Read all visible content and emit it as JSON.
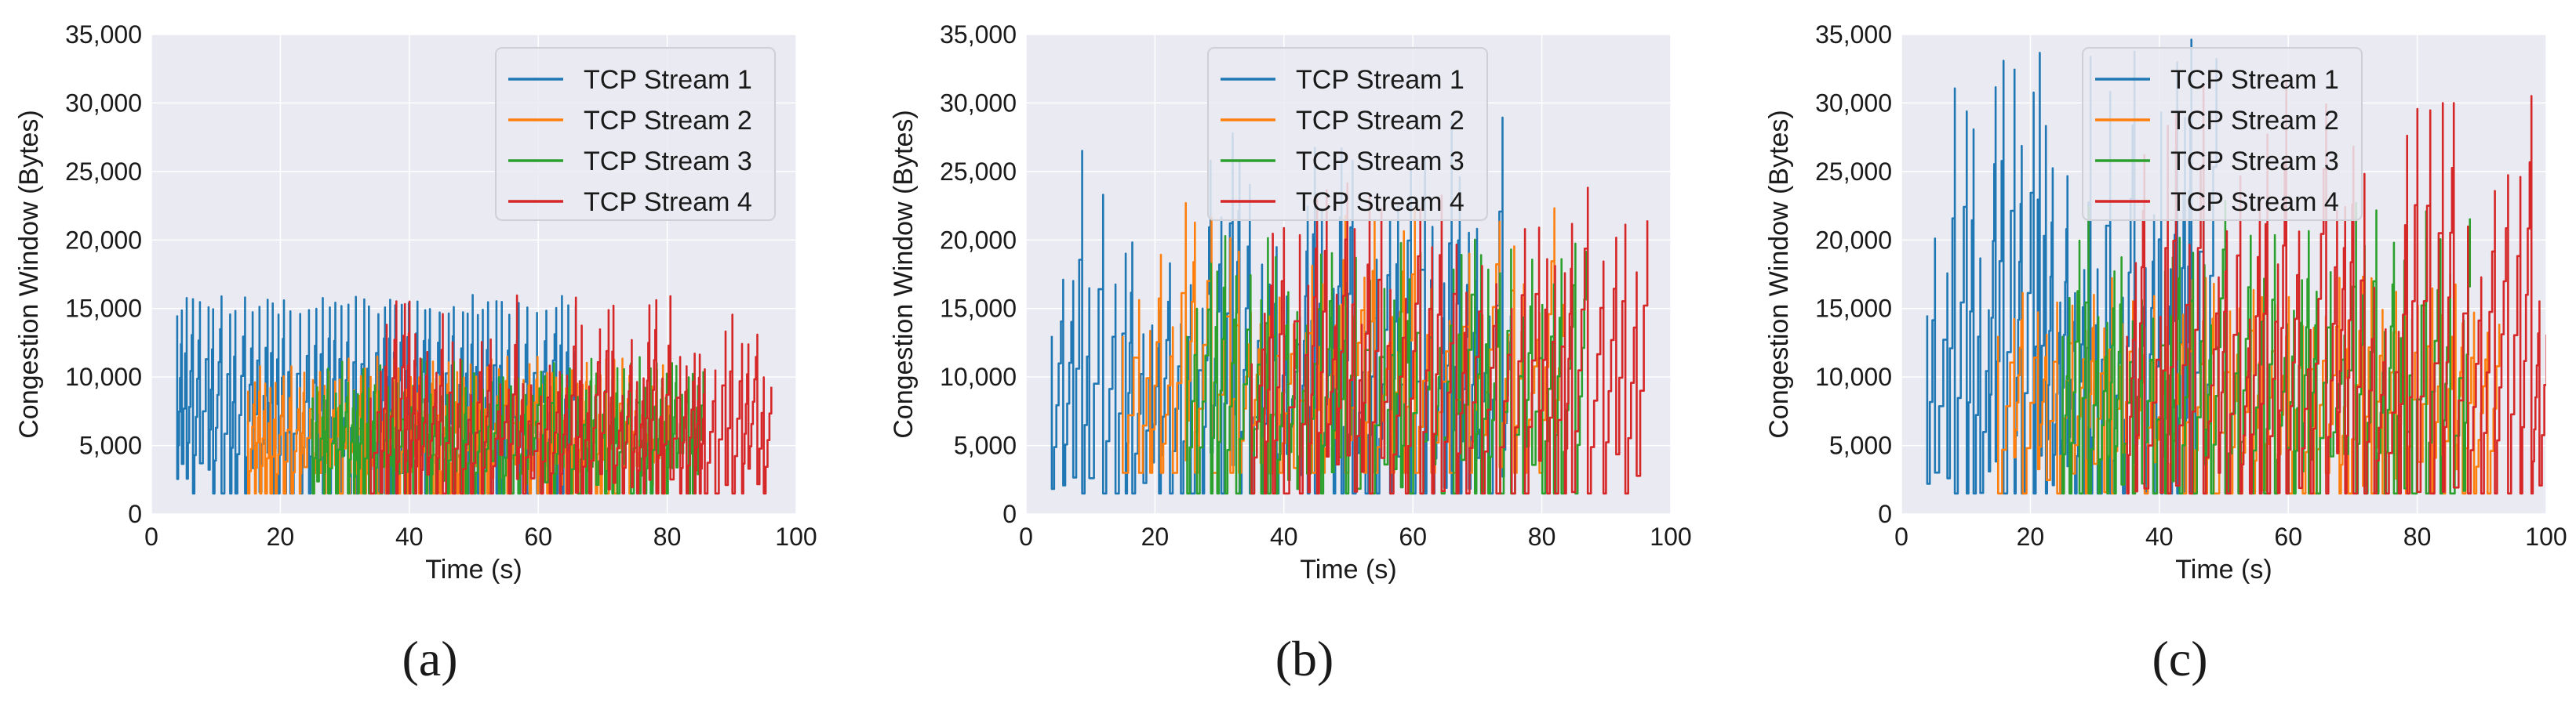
{
  "colors": {
    "plot_background": "#eaeaf2",
    "grid": "#ffffff",
    "stream_colors": [
      "#1f77b4",
      "#ff7f0e",
      "#2ca02c",
      "#d62728"
    ]
  },
  "chart_data": [
    {
      "type": "line",
      "panel_label": "(a)",
      "xlabel": "Time (s)",
      "ylabel": "Congestion Window (Bytes)",
      "xlim": [
        0,
        100
      ],
      "ylim": [
        0,
        35000
      ],
      "xticks": [
        "0",
        "20",
        "40",
        "60",
        "80",
        "100"
      ],
      "yticks": [
        "0",
        "5,000",
        "10,000",
        "15,000",
        "20,000",
        "25,000",
        "30,000",
        "35,000"
      ],
      "grid": true,
      "legend_position": "top-right",
      "series": [
        {
          "name": "TCP Stream 1",
          "active": [
            4,
            65
          ],
          "peak_min": 14500,
          "peak_max": 16000,
          "trough": 1500,
          "period": 1.1,
          "seed": 11
        },
        {
          "name": "TCP Stream 2",
          "active": [
            15,
            80
          ],
          "peak_min": 9000,
          "peak_max": 11500,
          "trough": 1500,
          "period": 1.0,
          "seed": 23
        },
        {
          "name": "TCP Stream 3",
          "active": [
            25,
            85
          ],
          "peak_min": 8500,
          "peak_max": 11500,
          "trough": 1500,
          "period": 1.0,
          "seed": 37
        },
        {
          "name": "TCP Stream 4",
          "active": [
            34,
            95
          ],
          "peak_min": 8500,
          "peak_max": 16000,
          "trough": 1500,
          "period": 1.2,
          "seed": 41
        }
      ]
    },
    {
      "type": "line",
      "panel_label": "(b)",
      "xlabel": "Time (s)",
      "ylabel": "Congestion Window (Bytes)",
      "xlim": [
        0,
        100
      ],
      "ylim": [
        0,
        35000
      ],
      "xticks": [
        "0",
        "20",
        "40",
        "60",
        "80",
        "100"
      ],
      "yticks": [
        "0",
        "5,000",
        "10,000",
        "15,000",
        "20,000",
        "25,000",
        "30,000",
        "35,000"
      ],
      "grid": true,
      "legend_position": "top-center",
      "series": [
        {
          "name": "TCP Stream 1",
          "active": [
            4,
            75
          ],
          "peak_min": 13000,
          "peak_max": 29000,
          "trough": 1500,
          "period": 1.6,
          "seed": 53
        },
        {
          "name": "TCP Stream 2",
          "active": [
            15,
            83
          ],
          "peak_min": 13000,
          "peak_max": 23000,
          "trough": 3000,
          "period": 2.2,
          "seed": 67
        },
        {
          "name": "TCP Stream 3",
          "active": [
            25,
            86
          ],
          "peak_min": 13000,
          "peak_max": 20500,
          "trough": 1500,
          "period": 1.6,
          "seed": 71
        },
        {
          "name": "TCP Stream 4",
          "active": [
            35,
            95
          ],
          "peak_min": 11000,
          "peak_max": 24500,
          "trough": 1500,
          "period": 1.8,
          "seed": 83
        }
      ]
    },
    {
      "type": "line",
      "panel_label": "(c)",
      "xlabel": "Time (s)",
      "ylabel": "Congestion Window (Bytes)",
      "xlim": [
        0,
        100
      ],
      "ylim": [
        0,
        35000
      ],
      "xticks": [
        "0",
        "20",
        "40",
        "60",
        "80",
        "100"
      ],
      "yticks": [
        "0",
        "5,000",
        "10,000",
        "15,000",
        "20,000",
        "25,000",
        "30,000",
        "35,000"
      ],
      "grid": true,
      "legend_position": "top-center",
      "series": [
        {
          "name": "TCP Stream 1",
          "active": [
            4,
            48
          ],
          "peak_min": 14500,
          "peak_max": 35000,
          "trough": 1500,
          "period": 1.5,
          "seed": 97
        },
        {
          "name": "TCP Stream 2",
          "active": [
            15,
            92
          ],
          "peak_min": 13000,
          "peak_max": 17500,
          "trough": 1500,
          "period": 1.8,
          "seed": 101
        },
        {
          "name": "TCP Stream 3",
          "active": [
            25,
            88
          ],
          "peak_min": 13000,
          "peak_max": 23000,
          "trough": 1500,
          "period": 1.6,
          "seed": 107
        },
        {
          "name": "TCP Stream 4",
          "active": [
            35,
            100
          ],
          "peak_min": 13000,
          "peak_max": 32000,
          "trough": 1500,
          "period": 1.8,
          "seed": 113
        }
      ]
    }
  ]
}
